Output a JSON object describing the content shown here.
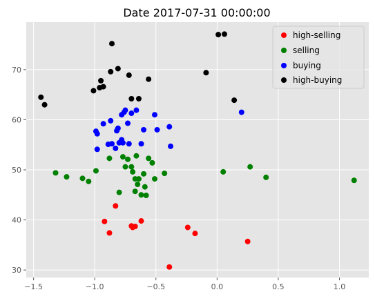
{
  "chart_data": {
    "type": "scatter",
    "title": "Date 2017-07-31 00:00:00",
    "xlabel": "",
    "ylabel": "",
    "xlim": [
      -1.56,
      1.24
    ],
    "ylim": [
      28.5,
      79.5
    ],
    "x_ticks": [
      -1.5,
      -1.0,
      -0.5,
      0.0,
      0.5,
      1.0
    ],
    "x_tick_labels": [
      "−1.5",
      "−1.0",
      "−0.5",
      "0.0",
      "0.5",
      "1.0"
    ],
    "y_ticks": [
      30,
      40,
      50,
      60,
      70
    ],
    "y_tick_labels": [
      "30",
      "40",
      "50",
      "60",
      "70"
    ],
    "grid": true,
    "legend_position": "top-right",
    "series": [
      {
        "name": "high-selling",
        "color": "#ff0000",
        "points": [
          [
            -0.92,
            39.7
          ],
          [
            -0.88,
            37.4
          ],
          [
            -0.83,
            42.8
          ],
          [
            -0.7,
            38.8
          ],
          [
            -0.69,
            38.5
          ],
          [
            -0.67,
            38.7
          ],
          [
            -0.62,
            39.8
          ],
          [
            -0.39,
            30.6
          ],
          [
            -0.24,
            38.5
          ],
          [
            -0.18,
            37.3
          ],
          [
            0.25,
            35.7
          ]
        ]
      },
      {
        "name": "selling",
        "color": "#008000",
        "points": [
          [
            -1.32,
            49.4
          ],
          [
            -1.23,
            48.6
          ],
          [
            -1.1,
            48.3
          ],
          [
            -1.05,
            47.7
          ],
          [
            -0.99,
            49.8
          ],
          [
            -0.88,
            52.3
          ],
          [
            -0.8,
            45.5
          ],
          [
            -0.77,
            52.6
          ],
          [
            -0.75,
            50.6
          ],
          [
            -0.73,
            52.1
          ],
          [
            -0.7,
            50.6
          ],
          [
            -0.69,
            49.6
          ],
          [
            -0.67,
            48.2
          ],
          [
            -0.67,
            45.7
          ],
          [
            -0.66,
            52.8
          ],
          [
            -0.65,
            47.1
          ],
          [
            -0.64,
            48.2
          ],
          [
            -0.62,
            45.0
          ],
          [
            -0.6,
            49.2
          ],
          [
            -0.59,
            46.6
          ],
          [
            -0.58,
            44.9
          ],
          [
            -0.56,
            52.3
          ],
          [
            -0.53,
            51.4
          ],
          [
            -0.51,
            48.2
          ],
          [
            -0.43,
            49.3
          ],
          [
            0.05,
            49.6
          ],
          [
            0.27,
            50.6
          ],
          [
            0.4,
            48.5
          ],
          [
            1.12,
            47.9
          ]
        ]
      },
      {
        "name": "buying",
        "color": "#0000ff",
        "points": [
          [
            -0.99,
            57.7
          ],
          [
            -0.98,
            57.2
          ],
          [
            -0.98,
            54.1
          ],
          [
            -0.93,
            59.2
          ],
          [
            -0.89,
            55.1
          ],
          [
            -0.87,
            59.8
          ],
          [
            -0.86,
            55.2
          ],
          [
            -0.83,
            54.3
          ],
          [
            -0.82,
            57.8
          ],
          [
            -0.81,
            58.3
          ],
          [
            -0.8,
            55.4
          ],
          [
            -0.78,
            56.0
          ],
          [
            -0.78,
            61.0
          ],
          [
            -0.77,
            55.4
          ],
          [
            -0.76,
            61.5
          ],
          [
            -0.75,
            61.9
          ],
          [
            -0.73,
            59.3
          ],
          [
            -0.72,
            55.2
          ],
          [
            -0.7,
            61.3
          ],
          [
            -0.66,
            61.9
          ],
          [
            -0.62,
            55.2
          ],
          [
            -0.6,
            58.0
          ],
          [
            -0.51,
            61.0
          ],
          [
            -0.49,
            58.0
          ],
          [
            -0.39,
            58.6
          ],
          [
            -0.38,
            54.7
          ],
          [
            0.2,
            61.5
          ]
        ]
      },
      {
        "name": "high-buying",
        "color": "#000000",
        "points": [
          [
            -1.44,
            64.5
          ],
          [
            -1.41,
            63.0
          ],
          [
            -1.01,
            65.8
          ],
          [
            -0.96,
            66.4
          ],
          [
            -0.95,
            67.8
          ],
          [
            -0.93,
            66.6
          ],
          [
            -0.87,
            69.6
          ],
          [
            -0.86,
            75.2
          ],
          [
            -0.81,
            70.2
          ],
          [
            -0.72,
            68.9
          ],
          [
            -0.7,
            64.2
          ],
          [
            -0.64,
            64.2
          ],
          [
            -0.56,
            68.1
          ],
          [
            -0.09,
            69.4
          ],
          [
            0.01,
            77.0
          ],
          [
            0.06,
            77.1
          ],
          [
            0.14,
            63.9
          ]
        ]
      }
    ]
  }
}
